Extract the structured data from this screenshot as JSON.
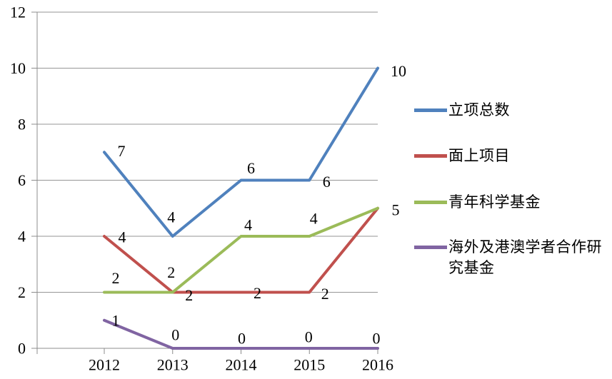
{
  "chart_data": {
    "type": "line",
    "title": "",
    "xlabel": "",
    "ylabel": "",
    "categories": [
      "2012",
      "2013",
      "2014",
      "2015",
      "2016"
    ],
    "series": [
      {
        "name": "立项总数",
        "color": "#4F81BD",
        "values": [
          7,
          4,
          6,
          6,
          10
        ],
        "point_labels": [
          "7",
          "4",
          "6",
          "6",
          "10"
        ],
        "label_offsets": [
          [
            24,
            -2
          ],
          [
            -2,
            -27
          ],
          [
            14,
            -17
          ],
          [
            24,
            2
          ],
          [
            29,
            4
          ]
        ]
      },
      {
        "name": "面上项目",
        "color": "#C0504D",
        "values": [
          4,
          2,
          2,
          2,
          5
        ],
        "point_labels": [
          "4",
          "2",
          "2",
          "2",
          ""
        ],
        "label_offsets": [
          [
            25,
            1
          ],
          [
            23,
            4
          ],
          [
            23,
            1
          ],
          [
            22,
            2
          ],
          [
            0,
            0
          ]
        ]
      },
      {
        "name": "青年科学基金",
        "color": "#9BBB59",
        "values": [
          2,
          2,
          4,
          4,
          5
        ],
        "point_labels": [
          "2",
          "2",
          "4",
          "4",
          "5"
        ],
        "label_offsets": [
          [
            16,
            -20
          ],
          [
            -2,
            -28
          ],
          [
            10,
            -16
          ],
          [
            6,
            -25
          ],
          [
            25,
            2
          ]
        ]
      },
      {
        "name": "海外及港澳学者合作研究基金",
        "color": "#8064A2",
        "values": [
          1,
          0,
          0,
          0,
          0
        ],
        "point_labels": [
          "1",
          "0",
          "0",
          "0",
          "0"
        ],
        "label_offsets": [
          [
            16,
            0
          ],
          [
            4,
            -19
          ],
          [
            1,
            -14
          ],
          [
            -1,
            -16
          ],
          [
            -2,
            -14
          ]
        ]
      }
    ],
    "ylim": [
      0,
      12
    ],
    "yticks": [
      0,
      2,
      4,
      6,
      8,
      10,
      12
    ],
    "ytick_labels": [
      "0",
      "2",
      "4",
      "6",
      "8",
      "10",
      "12"
    ],
    "grid": true,
    "grid_color": "#969696",
    "axis_color": "#8C8C8C",
    "legend_position": "right",
    "background": "#FFFFFF"
  }
}
